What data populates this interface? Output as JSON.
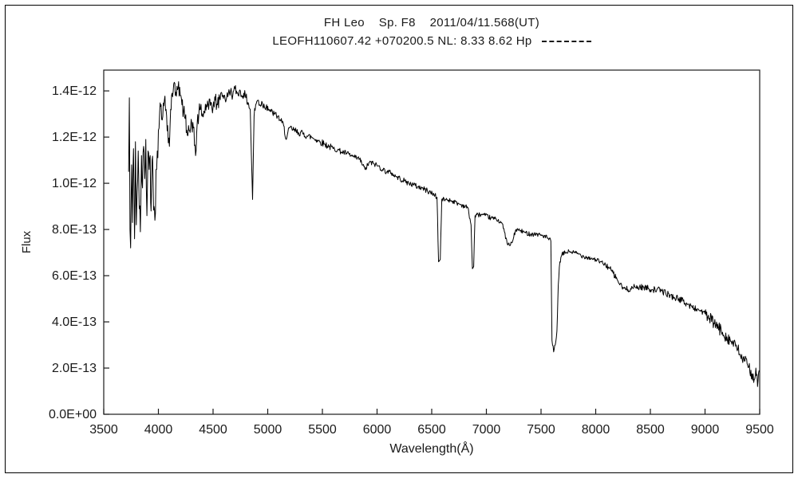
{
  "header": {
    "title": "FH Leo    Sp. F8    2011/04/11.568(UT)",
    "subtitle": "LEOFH110607.42 +070200.5 NL: 8.33 8.62 Hp",
    "line_style_legend": "dashed"
  },
  "chart_data": {
    "type": "line",
    "title": "FH Leo    Sp. F8    2011/04/11.568(UT)",
    "subtitle": "LEOFH110607.42 +070200.5 NL: 8.33 8.62 Hp",
    "xlabel": "Wavelength(Å)",
    "ylabel": "Flux",
    "xlim": [
      3500,
      9500
    ],
    "ylim_display_units": [
      0,
      14.9
    ],
    "y_unit_exponent": -13,
    "grid": false,
    "legend_position": "none",
    "x_ticks": [
      3500,
      4000,
      4500,
      5000,
      5500,
      6000,
      6500,
      7000,
      7500,
      8000,
      8500,
      9000,
      9500
    ],
    "y_ticks": [
      {
        "value": 0,
        "label": "0.0E+00"
      },
      {
        "value": 2,
        "label": "2.0E-13"
      },
      {
        "value": 4,
        "label": "4.0E-13"
      },
      {
        "value": 6,
        "label": "6.0E-13"
      },
      {
        "value": 8,
        "label": "8.0E-13"
      },
      {
        "value": 10,
        "label": "1.0E-12"
      },
      {
        "value": 12,
        "label": "1.2E-12"
      },
      {
        "value": 14,
        "label": "1.4E-12"
      }
    ],
    "line_color": "#000000",
    "series": [
      {
        "name": "FH Leo spectrum",
        "points_format": [
          "wavelength_angstrom",
          "flux_1e-13"
        ],
        "points": [
          [
            3728,
            10.5
          ],
          [
            3734,
            13.7
          ],
          [
            3740,
            8.0
          ],
          [
            3746,
            7.2
          ],
          [
            3755,
            10.8
          ],
          [
            3763,
            8.3
          ],
          [
            3772,
            11.5
          ],
          [
            3782,
            7.6
          ],
          [
            3790,
            11.8
          ],
          [
            3798,
            8.2
          ],
          [
            3805,
            9.6
          ],
          [
            3815,
            11.4
          ],
          [
            3825,
            8.9
          ],
          [
            3835,
            7.9
          ],
          [
            3845,
            11.2
          ],
          [
            3855,
            9.8
          ],
          [
            3865,
            11.6
          ],
          [
            3875,
            10.2
          ],
          [
            3885,
            11.9
          ],
          [
            3895,
            8.6
          ],
          [
            3905,
            11.4
          ],
          [
            3915,
            10.6
          ],
          [
            3925,
            11.2
          ],
          [
            3933,
            8.8
          ],
          [
            3942,
            11.0
          ],
          [
            3951,
            10.2
          ],
          [
            3960,
            9.0
          ],
          [
            3968,
            8.4
          ],
          [
            3978,
            10.6
          ],
          [
            3990,
            11.4
          ],
          [
            4000,
            12.3
          ],
          [
            4012,
            13.1
          ],
          [
            4025,
            13.4
          ],
          [
            4040,
            12.9
          ],
          [
            4055,
            13.6
          ],
          [
            4070,
            13.2
          ],
          [
            4085,
            12.5
          ],
          [
            4101,
            11.6
          ],
          [
            4112,
            13.2
          ],
          [
            4125,
            13.9
          ],
          [
            4140,
            14.3
          ],
          [
            4155,
            13.8
          ],
          [
            4170,
            14.2
          ],
          [
            4185,
            14.4
          ],
          [
            4200,
            13.8
          ],
          [
            4215,
            13.4
          ],
          [
            4230,
            13.1
          ],
          [
            4245,
            12.8
          ],
          [
            4260,
            12.3
          ],
          [
            4275,
            12.5
          ],
          [
            4290,
            12.2
          ],
          [
            4305,
            12.6
          ],
          [
            4320,
            12.4
          ],
          [
            4340,
            11.2
          ],
          [
            4355,
            12.6
          ],
          [
            4370,
            13.0
          ],
          [
            4385,
            13.2
          ],
          [
            4400,
            12.9
          ],
          [
            4420,
            13.1
          ],
          [
            4440,
            13.4
          ],
          [
            4460,
            13.2
          ],
          [
            4480,
            13.5
          ],
          [
            4500,
            13.3
          ],
          [
            4520,
            13.6
          ],
          [
            4540,
            13.4
          ],
          [
            4560,
            13.7
          ],
          [
            4580,
            13.9
          ],
          [
            4600,
            13.8
          ],
          [
            4620,
            13.6
          ],
          [
            4640,
            13.9
          ],
          [
            4660,
            14.0
          ],
          [
            4680,
            13.8
          ],
          [
            4700,
            14.1
          ],
          [
            4720,
            13.9
          ],
          [
            4740,
            14.0
          ],
          [
            4760,
            13.8
          ],
          [
            4780,
            13.9
          ],
          [
            4800,
            13.7
          ],
          [
            4820,
            13.5
          ],
          [
            4840,
            13.2
          ],
          [
            4861,
            9.3
          ],
          [
            4875,
            12.9
          ],
          [
            4890,
            13.4
          ],
          [
            4910,
            13.6
          ],
          [
            4930,
            13.4
          ],
          [
            4950,
            13.5
          ],
          [
            4970,
            13.3
          ],
          [
            4990,
            13.4
          ],
          [
            5010,
            13.2
          ],
          [
            5030,
            13.1
          ],
          [
            5060,
            13.0
          ],
          [
            5090,
            12.9
          ],
          [
            5120,
            12.7
          ],
          [
            5145,
            12.5
          ],
          [
            5170,
            11.9
          ],
          [
            5200,
            12.4
          ],
          [
            5240,
            12.3
          ],
          [
            5280,
            12.2
          ],
          [
            5320,
            12.15
          ],
          [
            5360,
            12.05
          ],
          [
            5400,
            12.0
          ],
          [
            5440,
            11.9
          ],
          [
            5480,
            11.8
          ],
          [
            5520,
            11.7
          ],
          [
            5560,
            11.6
          ],
          [
            5600,
            11.5
          ],
          [
            5640,
            11.45
          ],
          [
            5680,
            11.35
          ],
          [
            5720,
            11.3
          ],
          [
            5760,
            11.2
          ],
          [
            5800,
            11.1
          ],
          [
            5840,
            11.05
          ],
          [
            5890,
            10.6
          ],
          [
            5930,
            10.9
          ],
          [
            5970,
            10.85
          ],
          [
            6010,
            10.75
          ],
          [
            6050,
            10.6
          ],
          [
            6090,
            10.5
          ],
          [
            6130,
            10.45
          ],
          [
            6170,
            10.3
          ],
          [
            6210,
            10.2
          ],
          [
            6250,
            10.1
          ],
          [
            6290,
            10.0
          ],
          [
            6330,
            9.95
          ],
          [
            6370,
            9.85
          ],
          [
            6410,
            9.8
          ],
          [
            6450,
            9.7
          ],
          [
            6490,
            9.6
          ],
          [
            6530,
            9.5
          ],
          [
            6548,
            9.4
          ],
          [
            6563,
            6.6
          ],
          [
            6578,
            6.7
          ],
          [
            6592,
            9.3
          ],
          [
            6630,
            9.3
          ],
          [
            6680,
            9.25
          ],
          [
            6730,
            9.15
          ],
          [
            6780,
            9.05
          ],
          [
            6830,
            8.95
          ],
          [
            6860,
            8.2
          ],
          [
            6872,
            6.3
          ],
          [
            6884,
            6.4
          ],
          [
            6896,
            8.6
          ],
          [
            6940,
            8.65
          ],
          [
            6990,
            8.6
          ],
          [
            7040,
            8.5
          ],
          [
            7090,
            8.45
          ],
          [
            7140,
            8.3
          ],
          [
            7165,
            7.9
          ],
          [
            7190,
            7.4
          ],
          [
            7215,
            7.3
          ],
          [
            7240,
            7.5
          ],
          [
            7270,
            8.0
          ],
          [
            7310,
            7.95
          ],
          [
            7360,
            7.85
          ],
          [
            7410,
            7.8
          ],
          [
            7460,
            7.8
          ],
          [
            7510,
            7.75
          ],
          [
            7555,
            7.65
          ],
          [
            7590,
            7.5
          ],
          [
            7600,
            3.2
          ],
          [
            7615,
            2.7
          ],
          [
            7630,
            3.0
          ],
          [
            7645,
            3.6
          ],
          [
            7658,
            5.6
          ],
          [
            7672,
            6.6
          ],
          [
            7690,
            6.9
          ],
          [
            7720,
            7.0
          ],
          [
            7760,
            7.05
          ],
          [
            7800,
            7.0
          ],
          [
            7840,
            6.95
          ],
          [
            7880,
            6.85
          ],
          [
            7920,
            6.8
          ],
          [
            7960,
            6.75
          ],
          [
            8000,
            6.7
          ],
          [
            8040,
            6.6
          ],
          [
            8080,
            6.5
          ],
          [
            8120,
            6.35
          ],
          [
            8160,
            6.1
          ],
          [
            8200,
            5.8
          ],
          [
            8240,
            5.5
          ],
          [
            8280,
            5.4
          ],
          [
            8320,
            5.45
          ],
          [
            8360,
            5.5
          ],
          [
            8400,
            5.5
          ],
          [
            8440,
            5.5
          ],
          [
            8480,
            5.45
          ],
          [
            8520,
            5.4
          ],
          [
            8560,
            5.4
          ],
          [
            8600,
            5.35
          ],
          [
            8640,
            5.25
          ],
          [
            8680,
            5.15
          ],
          [
            8720,
            5.05
          ],
          [
            8760,
            5.0
          ],
          [
            8800,
            4.9
          ],
          [
            8840,
            4.75
          ],
          [
            8880,
            4.65
          ],
          [
            8920,
            4.55
          ],
          [
            8960,
            4.5
          ],
          [
            9000,
            4.35
          ],
          [
            9040,
            4.15
          ],
          [
            9080,
            3.95
          ],
          [
            9120,
            3.75
          ],
          [
            9160,
            3.55
          ],
          [
            9200,
            3.35
          ],
          [
            9240,
            3.15
          ],
          [
            9280,
            2.95
          ],
          [
            9320,
            2.6
          ],
          [
            9360,
            2.3
          ],
          [
            9400,
            2.05
          ],
          [
            9430,
            1.75
          ],
          [
            9450,
            1.5
          ],
          [
            9465,
            2.0
          ],
          [
            9480,
            1.2
          ],
          [
            9495,
            1.9
          ]
        ]
      }
    ],
    "noise_profile": [
      {
        "to": 4000,
        "amp": 0.85
      },
      {
        "to": 4200,
        "amp": 0.5
      },
      {
        "to": 4550,
        "amp": 0.38
      },
      {
        "to": 5000,
        "amp": 0.22
      },
      {
        "to": 5600,
        "amp": 0.15
      },
      {
        "to": 6550,
        "amp": 0.12
      },
      {
        "to": 7580,
        "amp": 0.1
      },
      {
        "to": 8100,
        "amp": 0.1
      },
      {
        "to": 9000,
        "amp": 0.14
      },
      {
        "to": 9600,
        "amp": 0.28
      }
    ],
    "absorption_features_angstrom": [
      4101,
      4340,
      4861,
      5170,
      5890,
      6563,
      6870,
      7200,
      7620,
      8200,
      9350
    ]
  }
}
